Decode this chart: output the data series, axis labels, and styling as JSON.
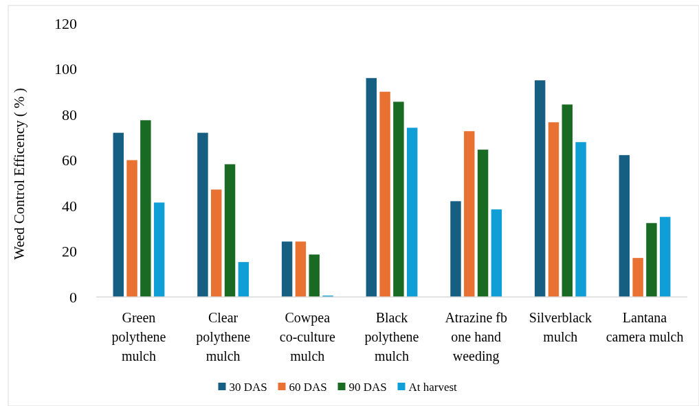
{
  "chart_data": {
    "type": "bar",
    "ylabel": "Weed Control Efficency ( % )",
    "categories": [
      "Green polythene mulch",
      "Clear polythene mulch",
      "Cowpea co-culture mulch",
      "Black polythene mulch",
      "Atrazine fb one hand weeding",
      "Silverblack mulch",
      "Lantana camera mulch"
    ],
    "series": [
      {
        "name": "30 DAS",
        "color": "#175f82",
        "values": [
          72,
          72,
          24.3,
          96,
          42,
          95,
          62.2
        ]
      },
      {
        "name": "60 DAS",
        "color": "#e97132",
        "values": [
          60,
          47.1,
          24.3,
          90,
          72.7,
          76.6,
          17.1
        ]
      },
      {
        "name": "90 DAS",
        "color": "#196b24",
        "values": [
          77.5,
          58.2,
          18.6,
          85.6,
          64.6,
          84.4,
          32.4
        ]
      },
      {
        "name": "At harvest",
        "color": "#0f9ed5",
        "values": [
          41.4,
          15.3,
          0.6,
          74.2,
          38.4,
          67.9,
          35.1
        ]
      }
    ],
    "ylim": [
      0,
      120
    ],
    "yticks": [
      0,
      20,
      40,
      60,
      80,
      100,
      120
    ],
    "grid": false,
    "legend": "bottom"
  }
}
